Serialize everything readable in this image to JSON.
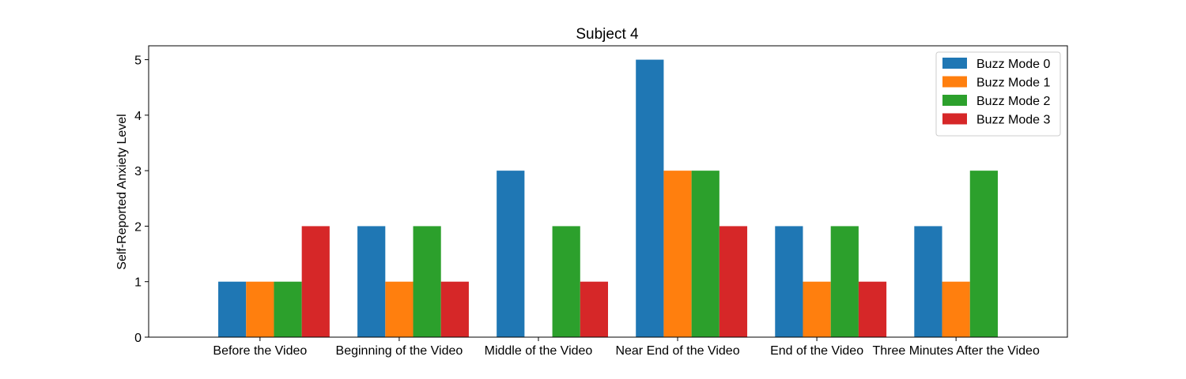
{
  "chart_data": {
    "type": "bar",
    "title": "Subject 4",
    "xlabel": "",
    "ylabel": "Self-Reported Anxiety Level",
    "ylim": [
      0,
      5.25
    ],
    "yticks": [
      0,
      1,
      2,
      3,
      4,
      5
    ],
    "grid": false,
    "legend_position": "top-right",
    "categories": [
      "Before the Video",
      "Beginning of the Video",
      "Middle of the Video",
      "Near End of the Video",
      "End of the Video",
      "Three Minutes After the Video"
    ],
    "series": [
      {
        "name": "Buzz Mode 0",
        "color": "#1f77b4",
        "values": [
          1,
          2,
          3,
          5,
          2,
          2
        ]
      },
      {
        "name": "Buzz Mode 1",
        "color": "#ff7f0e",
        "values": [
          1,
          1,
          0,
          3,
          1,
          1
        ]
      },
      {
        "name": "Buzz Mode 2",
        "color": "#2ca02c",
        "values": [
          1,
          2,
          2,
          3,
          2,
          3
        ]
      },
      {
        "name": "Buzz Mode 3",
        "color": "#d62728",
        "values": [
          2,
          1,
          1,
          2,
          1,
          0
        ]
      }
    ]
  }
}
